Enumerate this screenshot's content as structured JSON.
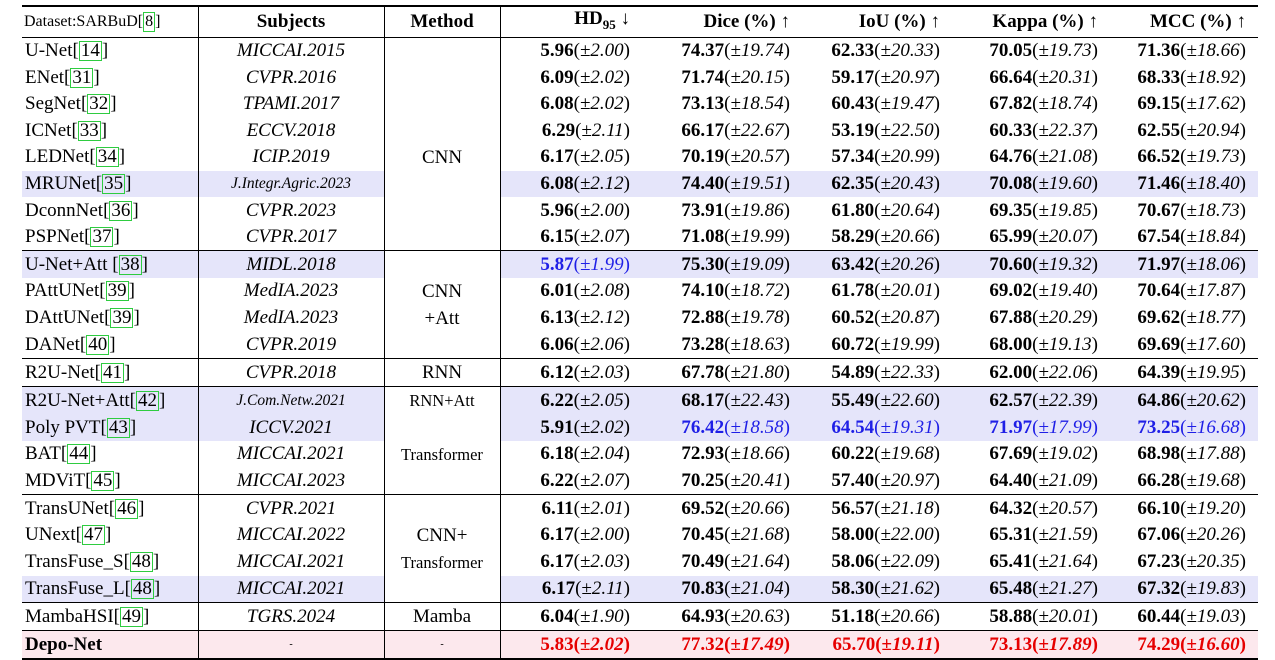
{
  "header": {
    "dataset_label": "Dataset:SARBuD",
    "dataset_cite": "8",
    "subjects": "Subjects",
    "method": "Method",
    "metrics": [
      {
        "name": "HD",
        "sub": "95",
        "arrow": "↓"
      },
      {
        "name": "Dice (%)",
        "sub": "",
        "arrow": "↑"
      },
      {
        "name": "IoU (%)",
        "sub": "",
        "arrow": "↑"
      },
      {
        "name": "Kappa (%)",
        "sub": "",
        "arrow": "↑"
      },
      {
        "name": "MCC (%)",
        "sub": "",
        "arrow": "↑"
      }
    ]
  },
  "colors": {
    "blue": "#1f1fe6",
    "red": "#e60000",
    "highlight": "#e5e5fa",
    "final_row": "#fce8ed",
    "cite_box": "#2ecc40"
  },
  "rows": [
    {
      "model": "U-Net",
      "cite": "14",
      "subject": "MICCAI.2015",
      "method": "",
      "vals": [
        [
          "5.96",
          "±2.00"
        ],
        [
          "74.37",
          "±19.74"
        ],
        [
          "62.33",
          "±20.33"
        ],
        [
          "70.05",
          "±19.73"
        ],
        [
          "71.36",
          "±18.66"
        ]
      ]
    },
    {
      "model": "ENet",
      "cite": "31",
      "subject": "CVPR.2016",
      "method": "",
      "vals": [
        [
          "6.09",
          "±2.02"
        ],
        [
          "71.74",
          "±20.15"
        ],
        [
          "59.17",
          "±20.97"
        ],
        [
          "66.64",
          "±20.31"
        ],
        [
          "68.33",
          "±18.92"
        ]
      ]
    },
    {
      "model": "SegNet",
      "cite": "32",
      "subject": "TPAMI.2017",
      "method": "",
      "vals": [
        [
          "6.08",
          "±2.02"
        ],
        [
          "73.13",
          "±18.54"
        ],
        [
          "60.43",
          "±19.47"
        ],
        [
          "67.82",
          "±18.74"
        ],
        [
          "69.15",
          "±17.62"
        ]
      ]
    },
    {
      "model": "ICNet",
      "cite": "33",
      "subject": "ECCV.2018",
      "method": "",
      "vals": [
        [
          "6.29",
          "±2.11"
        ],
        [
          "66.17",
          "±22.67"
        ],
        [
          "53.19",
          "±22.50"
        ],
        [
          "60.33",
          "±22.37"
        ],
        [
          "62.55",
          "±20.94"
        ]
      ]
    },
    {
      "model": "LEDNet",
      "cite": "34",
      "subject": "ICIP.2019",
      "method": "CNN",
      "vals": [
        [
          "6.17",
          "±2.05"
        ],
        [
          "70.19",
          "±20.57"
        ],
        [
          "57.34",
          "±20.99"
        ],
        [
          "64.76",
          "±21.08"
        ],
        [
          "66.52",
          "±19.73"
        ]
      ]
    },
    {
      "model": "MRUNet",
      "cite": "35",
      "subject": "J.Integr.Agric.2023",
      "method": "",
      "vals": [
        [
          "6.08",
          "±2.12"
        ],
        [
          "74.40",
          "±19.51"
        ],
        [
          "62.35",
          "±20.43"
        ],
        [
          "70.08",
          "±19.60"
        ],
        [
          "71.46",
          "±18.40"
        ]
      ]
    },
    {
      "model": "DconnNet",
      "cite": "36",
      "subject": "CVPR.2023",
      "method": "",
      "vals": [
        [
          "5.96",
          "±2.00"
        ],
        [
          "73.91",
          "±19.86"
        ],
        [
          "61.80",
          "±20.64"
        ],
        [
          "69.35",
          "±19.85"
        ],
        [
          "70.67",
          "±18.73"
        ]
      ]
    },
    {
      "model": "PSPNet",
      "cite": "37",
      "subject": "CVPR.2017",
      "method": "",
      "vals": [
        [
          "6.15",
          "±2.07"
        ],
        [
          "71.08",
          "±19.99"
        ],
        [
          "58.29",
          "±20.66"
        ],
        [
          "65.99",
          "±20.07"
        ],
        [
          "67.54",
          "±18.84"
        ]
      ]
    },
    {
      "model": "U-Net+Att ",
      "cite": "38",
      "subject": "MIDL.2018",
      "method": "",
      "vals": [
        [
          "5.87",
          "±1.99"
        ],
        [
          "75.30",
          "±19.09"
        ],
        [
          "63.42",
          "±20.26"
        ],
        [
          "70.60",
          "±19.32"
        ],
        [
          "71.97",
          "±18.06"
        ]
      ]
    },
    {
      "model": "PAttUNet",
      "cite": "39",
      "subject": "MedIA.2023",
      "method": "CNN",
      "vals": [
        [
          "6.01",
          "±2.08"
        ],
        [
          "74.10",
          "±18.72"
        ],
        [
          "61.78",
          "±20.01"
        ],
        [
          "69.02",
          "±19.40"
        ],
        [
          "70.64",
          "±17.87"
        ]
      ]
    },
    {
      "model": "DAttUNet",
      "cite": "39",
      "subject": "MedIA.2023",
      "method": "+Att",
      "vals": [
        [
          "6.13",
          "±2.12"
        ],
        [
          "72.88",
          "±19.78"
        ],
        [
          "60.52",
          "±20.87"
        ],
        [
          "67.88",
          "±20.29"
        ],
        [
          "69.62",
          "±18.77"
        ]
      ]
    },
    {
      "model": "DANet",
      "cite": "40",
      "subject": "CVPR.2019",
      "method": "",
      "vals": [
        [
          "6.06",
          "±2.06"
        ],
        [
          "73.28",
          "±18.63"
        ],
        [
          "60.72",
          "±19.99"
        ],
        [
          "68.00",
          "±19.13"
        ],
        [
          "69.69",
          "±17.60"
        ]
      ]
    },
    {
      "model": "R2U-Net",
      "cite": "41",
      "subject": "CVPR.2018",
      "method": "RNN",
      "vals": [
        [
          "6.12",
          "±2.03"
        ],
        [
          "67.78",
          "±21.80"
        ],
        [
          "54.89",
          "±22.33"
        ],
        [
          "62.00",
          "±22.06"
        ],
        [
          "64.39",
          "±19.95"
        ]
      ]
    },
    {
      "model": "R2U-Net+Att",
      "cite": "42",
      "subject": "J.Com.Netw.2021",
      "method": "RNN+Att",
      "vals": [
        [
          "6.22",
          "±2.05"
        ],
        [
          "68.17",
          "±22.43"
        ],
        [
          "55.49",
          "±22.60"
        ],
        [
          "62.57",
          "±22.39"
        ],
        [
          "64.86",
          "±20.62"
        ]
      ]
    },
    {
      "model": "Poly PVT",
      "cite": "43",
      "subject": "ICCV.2021",
      "method": "",
      "vals": [
        [
          "5.91",
          "±2.02"
        ],
        [
          "76.42",
          "±18.58"
        ],
        [
          "64.54",
          "±19.31"
        ],
        [
          "71.97",
          "±17.99"
        ],
        [
          "73.25",
          "±16.68"
        ]
      ]
    },
    {
      "model": "BAT",
      "cite": "44",
      "subject": "MICCAI.2021",
      "method": "Transformer",
      "vals": [
        [
          "6.18",
          "±2.04"
        ],
        [
          "72.93",
          "±18.66"
        ],
        [
          "60.22",
          "±19.68"
        ],
        [
          "67.69",
          "±19.02"
        ],
        [
          "68.98",
          "±17.88"
        ]
      ]
    },
    {
      "model": "MDViT",
      "cite": "45",
      "subject": "MICCAI.2023",
      "method": "",
      "vals": [
        [
          "6.22",
          "±2.07"
        ],
        [
          "70.25",
          "±20.41"
        ],
        [
          "57.40",
          "±20.97"
        ],
        [
          "64.40",
          "±21.09"
        ],
        [
          "66.28",
          "±19.68"
        ]
      ]
    },
    {
      "model": "TransUNet",
      "cite": "46",
      "subject": "CVPR.2021",
      "method": "",
      "vals": [
        [
          "6.11",
          "±2.01"
        ],
        [
          "69.52",
          "±20.66"
        ],
        [
          "56.57",
          "±21.18"
        ],
        [
          "64.32",
          "±20.57"
        ],
        [
          "66.10",
          "±19.20"
        ]
      ]
    },
    {
      "model": "UNext",
      "cite": "47",
      "subject": "MICCAI.2022",
      "method": "CNN+",
      "vals": [
        [
          "6.17",
          "±2.00"
        ],
        [
          "70.45",
          "±21.68"
        ],
        [
          "58.00",
          "±22.00"
        ],
        [
          "65.31",
          "±21.59"
        ],
        [
          "67.06",
          "±20.26"
        ]
      ]
    },
    {
      "model": "TransFuse_S",
      "cite": "48",
      "subject": "MICCAI.2021",
      "method": "Transformer",
      "vals": [
        [
          "6.17",
          "±2.03"
        ],
        [
          "70.49",
          "±21.64"
        ],
        [
          "58.06",
          "±22.09"
        ],
        [
          "65.41",
          "±21.64"
        ],
        [
          "67.23",
          "±20.35"
        ]
      ]
    },
    {
      "model": "TransFuse_L",
      "cite": "48",
      "subject": "MICCAI.2021",
      "method": "",
      "vals": [
        [
          "6.17",
          "±2.11"
        ],
        [
          "70.83",
          "±21.04"
        ],
        [
          "58.30",
          "±21.62"
        ],
        [
          "65.48",
          "±21.27"
        ],
        [
          "67.32",
          "±19.83"
        ]
      ]
    },
    {
      "model": "MambaHSI",
      "cite": "49",
      "subject": "TGRS.2024",
      "method": "Mamba",
      "vals": [
        [
          "6.04",
          "±1.90"
        ],
        [
          "64.93",
          "±20.63"
        ],
        [
          "51.18",
          "±20.66"
        ],
        [
          "58.88",
          "±20.01"
        ],
        [
          "60.44",
          "±19.03"
        ]
      ]
    },
    {
      "model": "Depo-Net",
      "cite": "",
      "subject": "-",
      "method": "-",
      "vals": [
        [
          "5.83",
          "±2.02"
        ],
        [
          "77.32",
          "±17.49"
        ],
        [
          "65.70",
          "±19.11"
        ],
        [
          "73.13",
          "±17.89"
        ],
        [
          "74.29",
          "±16.60"
        ]
      ]
    }
  ]
}
